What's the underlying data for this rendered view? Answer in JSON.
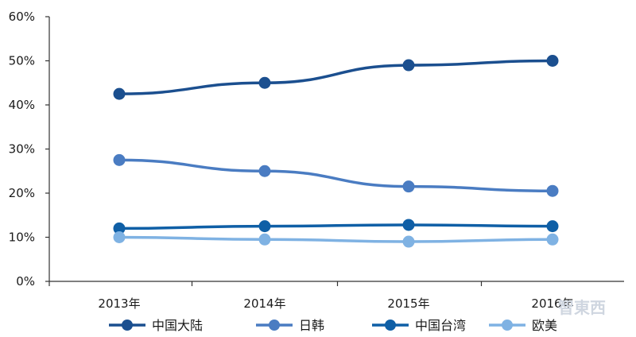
{
  "chart_data": {
    "type": "line",
    "title": "",
    "xlabel": "",
    "ylabel": "",
    "categories": [
      "2013年",
      "2014年",
      "2015年",
      "2016年"
    ],
    "ylim": [
      0,
      60
    ],
    "y_ticks": [
      0,
      10,
      20,
      30,
      40,
      50,
      60
    ],
    "y_tick_labels": [
      "0%",
      "10%",
      "20%",
      "30%",
      "40%",
      "50%",
      "60%"
    ],
    "grid": false,
    "legend_position": "bottom",
    "series": [
      {
        "name": "中国大陆",
        "values": [
          42.5,
          45,
          49,
          50
        ],
        "color": "#1b4f8f"
      },
      {
        "name": "日韩",
        "values": [
          27.5,
          25,
          21.5,
          20.5
        ],
        "color": "#4a7cc2"
      },
      {
        "name": "中国台湾",
        "values": [
          12,
          12.5,
          12.8,
          12.5
        ],
        "color": "#0f5fa6"
      },
      {
        "name": "欧美",
        "values": [
          10,
          9.5,
          9,
          9.5
        ],
        "color": "#7fb2e3"
      }
    ]
  },
  "watermark": {
    "text": "智東西",
    "icon": "watermark-logo"
  }
}
